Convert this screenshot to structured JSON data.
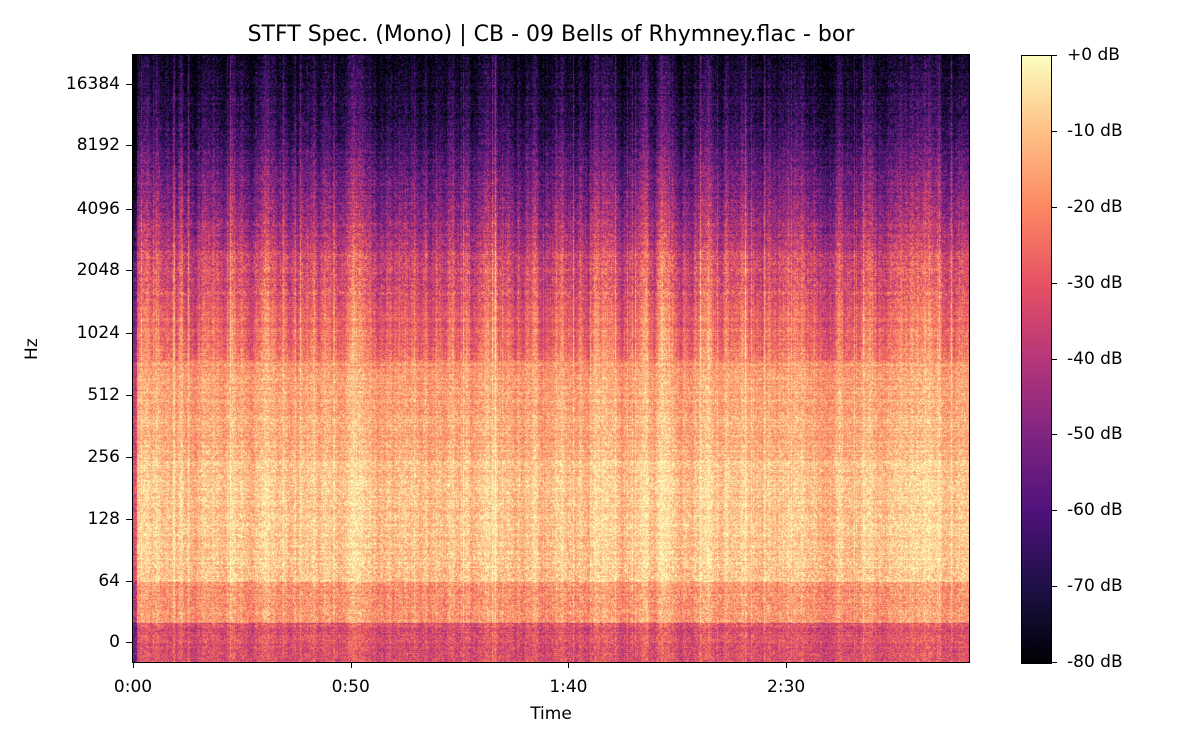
{
  "chart_data": {
    "type": "heatmap",
    "title": "STFT Spec. (Mono) | CB - 09 Bells of Rhymney.flac - bor",
    "xlabel": "Time",
    "ylabel": "Hz",
    "x_ticks": [
      "0:00",
      "0:50",
      "1:40",
      "2:30"
    ],
    "x_tick_seconds": [
      0,
      50,
      100,
      150
    ],
    "xlim_seconds": [
      0,
      192
    ],
    "y_scale": "log (symlog base 2)",
    "y_ticks": [
      "0",
      "64",
      "128",
      "256",
      "512",
      "1024",
      "2048",
      "4096",
      "8192",
      "16384"
    ],
    "colorbar": {
      "colormap": "magma",
      "range_db": [
        -80,
        0
      ],
      "ticks": [
        "+0 dB",
        "-10 dB",
        "-20 dB",
        "-30 dB",
        "-40 dB",
        "-50 dB",
        "-60 dB",
        "-70 dB",
        "-80 dB"
      ]
    }
  }
}
